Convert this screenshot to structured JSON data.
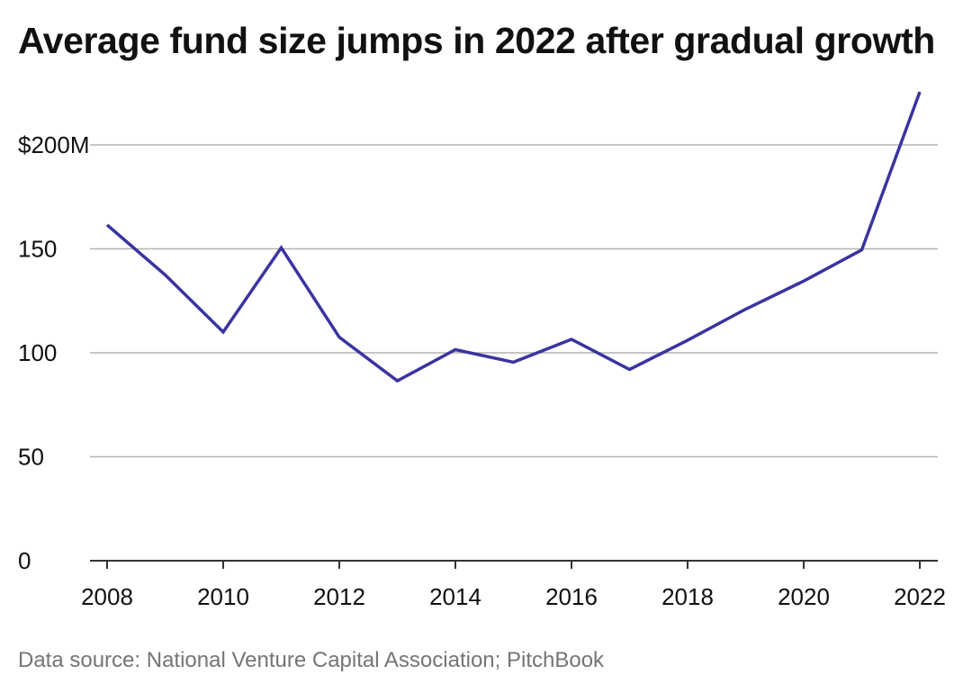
{
  "chart_data": {
    "type": "line",
    "title": "Average fund size jumps in 2022 after gradual growth",
    "source": "Data source: National Venture Capital Association; PitchBook",
    "xlabel": "",
    "ylabel": "",
    "x": [
      2008,
      2009,
      2010,
      2011,
      2012,
      2013,
      2014,
      2015,
      2016,
      2017,
      2018,
      2019,
      2020,
      2021,
      2022
    ],
    "series": [
      {
        "name": "Average fund size",
        "color": "#3a34a0",
        "values": [
          161.5,
          137.5,
          110,
          150.5,
          107.5,
          86.5,
          101.5,
          95.5,
          106.5,
          92,
          106,
          121,
          134.5,
          149.5,
          225.5
        ]
      }
    ],
    "ylim": [
      0,
      230
    ],
    "xlim": [
      2008,
      2022
    ],
    "y_ticks": [
      {
        "value": 0,
        "label": "0"
      },
      {
        "value": 50,
        "label": "50"
      },
      {
        "value": 100,
        "label": "100"
      },
      {
        "value": 150,
        "label": "150"
      },
      {
        "value": 200,
        "label": "$200M"
      }
    ],
    "x_ticks": [
      {
        "value": 2008,
        "label": "2008"
      },
      {
        "value": 2010,
        "label": "2010"
      },
      {
        "value": 2012,
        "label": "2012"
      },
      {
        "value": 2014,
        "label": "2014"
      },
      {
        "value": 2016,
        "label": "2016"
      },
      {
        "value": 2018,
        "label": "2018"
      },
      {
        "value": 2020,
        "label": "2020"
      },
      {
        "value": 2022,
        "label": "2022"
      }
    ],
    "grid": true,
    "legend": "none",
    "colors": {
      "grid": "#b3b3b3",
      "axis": "#333333",
      "line": "#3a34a0"
    }
  }
}
